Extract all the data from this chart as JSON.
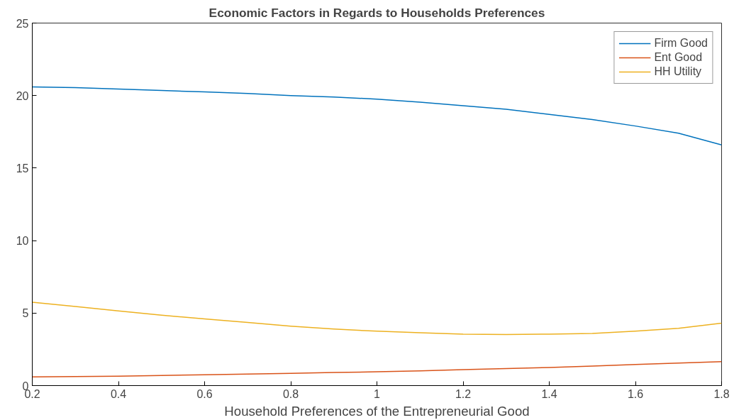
{
  "chart_data": {
    "type": "line",
    "title": "Economic Factors in Regards to Households Preferences",
    "xlabel": "Household Preferences of the Entrepreneurial Good",
    "x": [
      0.2,
      0.3,
      0.4,
      0.5,
      0.6,
      0.7,
      0.8,
      0.9,
      1.0,
      1.1,
      1.2,
      1.3,
      1.4,
      1.5,
      1.6,
      1.7,
      1.8
    ],
    "series": [
      {
        "name": "Firm Good",
        "color": "#0072bd",
        "values": [
          20.6,
          20.55,
          20.45,
          20.35,
          20.25,
          20.15,
          20.0,
          19.9,
          19.75,
          19.55,
          19.3,
          19.05,
          18.7,
          18.35,
          17.9,
          17.4,
          16.6
        ]
      },
      {
        "name": "Ent Good",
        "color": "#d95319",
        "values": [
          0.6,
          0.62,
          0.65,
          0.7,
          0.75,
          0.8,
          0.85,
          0.9,
          0.95,
          1.02,
          1.1,
          1.17,
          1.25,
          1.35,
          1.45,
          1.55,
          1.65
        ]
      },
      {
        "name": "HH Utility",
        "color": "#edb120",
        "values": [
          5.75,
          5.45,
          5.15,
          4.85,
          4.6,
          4.35,
          4.1,
          3.9,
          3.75,
          3.65,
          3.55,
          3.52,
          3.55,
          3.6,
          3.75,
          3.95,
          4.3
        ]
      }
    ],
    "xlim": [
      0.2,
      1.8
    ],
    "ylim": [
      0,
      25
    ],
    "xticks": [
      0.2,
      0.4,
      0.6,
      0.8,
      {
        "value": 1,
        "label": "1"
      },
      1.2,
      1.4,
      1.6,
      1.8
    ],
    "yticks": [
      0,
      5,
      10,
      15,
      20,
      25
    ],
    "grid": false,
    "legend": "top right",
    "marker": "none",
    "line_style": "solid"
  }
}
